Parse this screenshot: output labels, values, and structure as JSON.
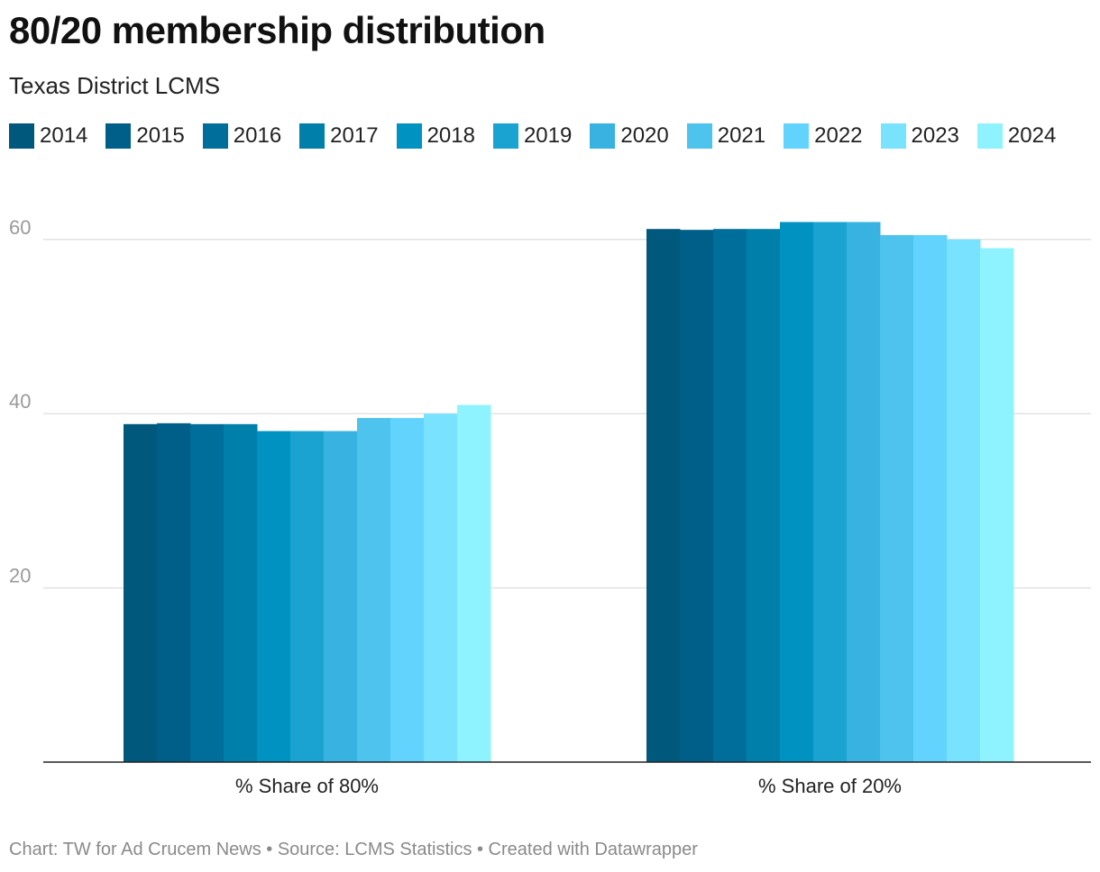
{
  "title": "80/20 membership distribution",
  "subtitle": "Texas District LCMS",
  "footer": "Chart: TW for Ad Crucem News • Source: LCMS Statistics • Created with Datawrapper",
  "chart_data": {
    "type": "bar",
    "title": "80/20 membership distribution",
    "subtitle": "Texas District LCMS",
    "categories": [
      "% Share of 80%",
      "% Share of 20%"
    ],
    "ylim": [
      0,
      65
    ],
    "yticks": [
      20,
      40,
      60
    ],
    "grid": true,
    "legend_position": "top",
    "series": [
      {
        "name": "2014",
        "color": "#00587c",
        "values": [
          38.8,
          61.2
        ]
      },
      {
        "name": "2015",
        "color": "#005f88",
        "values": [
          38.9,
          61.1
        ]
      },
      {
        "name": "2016",
        "color": "#006e9b",
        "values": [
          38.8,
          61.2
        ]
      },
      {
        "name": "2017",
        "color": "#007fab",
        "values": [
          38.8,
          61.2
        ]
      },
      {
        "name": "2018",
        "color": "#0092c0",
        "values": [
          38.0,
          62.0
        ]
      },
      {
        "name": "2019",
        "color": "#1aa3d0",
        "values": [
          38.0,
          62.0
        ]
      },
      {
        "name": "2020",
        "color": "#38b2e0",
        "values": [
          38.0,
          62.0
        ]
      },
      {
        "name": "2021",
        "color": "#4dc3ee",
        "values": [
          39.5,
          60.5
        ]
      },
      {
        "name": "2022",
        "color": "#62d3fd",
        "values": [
          39.5,
          60.5
        ]
      },
      {
        "name": "2023",
        "color": "#78e2ff",
        "values": [
          40.0,
          60.0
        ]
      },
      {
        "name": "2024",
        "color": "#8ef3ff",
        "values": [
          41.0,
          59.0
        ]
      }
    ]
  }
}
